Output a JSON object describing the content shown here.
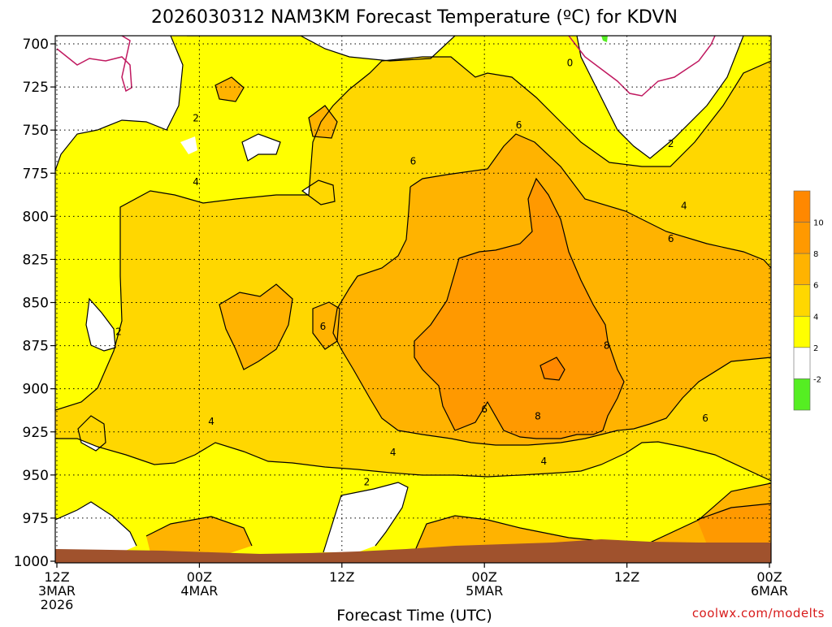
{
  "chart_data": {
    "type": "contour",
    "title": "2026030312 NAM3KM Forecast Temperature (ºC) for KDVN",
    "xlabel": "Forecast Time (UTC)",
    "credit": "coolwx.com/modelts",
    "y_ticks": [
      "700",
      "725",
      "750",
      "775",
      "800",
      "825",
      "850",
      "875",
      "900",
      "925",
      "950",
      "975",
      "1000"
    ],
    "y_values": [
      700,
      725,
      750,
      775,
      800,
      825,
      850,
      875,
      900,
      925,
      950,
      975,
      1000
    ],
    "ylim": [
      700,
      1000
    ],
    "x_ticks": [
      {
        "hour": 0,
        "lines": [
          "12Z",
          "3MAR",
          "2026"
        ]
      },
      {
        "hour": 12,
        "lines": [
          "00Z",
          "4MAR"
        ]
      },
      {
        "hour": 24,
        "lines": [
          "12Z"
        ]
      },
      {
        "hour": 36,
        "lines": [
          "00Z",
          "5MAR"
        ]
      },
      {
        "hour": 48,
        "lines": [
          "12Z"
        ]
      },
      {
        "hour": 60,
        "lines": [
          "00Z",
          "6MAR"
        ]
      }
    ],
    "xlim": [
      0,
      60
    ],
    "grid": true,
    "legend": {
      "placement": "right",
      "levels": [
        "-2",
        "2",
        "4",
        "6",
        "8",
        "10"
      ],
      "colors": [
        "#55ee22",
        "#ffffff",
        "#ffff00",
        "#ffd700",
        "#ffb300",
        "#ff9900",
        "#ff8800"
      ]
    },
    "colors": {
      "white": "#ffffff",
      "yellow": "#ffff00",
      "gold": "#ffd700",
      "orange_light": "#ffb300",
      "orange": "#ff9900",
      "orange_dark": "#ff8800",
      "green": "#55ee22",
      "ground": "#a0522d",
      "zero_line": "#c0185f"
    },
    "contour_labels": [
      {
        "text": "0",
        "hour": 43.2,
        "p": 711
      },
      {
        "text": "2",
        "hour": 11.7,
        "p": 743
      },
      {
        "text": "2",
        "hour": 51.7,
        "p": 758
      },
      {
        "text": "2",
        "hour": 5.2,
        "p": 867
      },
      {
        "text": "2",
        "hour": 26.1,
        "p": 954
      },
      {
        "text": "4",
        "hour": 11.7,
        "p": 780
      },
      {
        "text": "4",
        "hour": 52.8,
        "p": 794
      },
      {
        "text": "4",
        "hour": 13.0,
        "p": 919
      },
      {
        "text": "4",
        "hour": 28.3,
        "p": 937
      },
      {
        "text": "4",
        "hour": 41.0,
        "p": 942
      },
      {
        "text": "6",
        "hour": 38.9,
        "p": 747
      },
      {
        "text": "6",
        "hour": 30.0,
        "p": 768
      },
      {
        "text": "6",
        "hour": 51.7,
        "p": 813
      },
      {
        "text": "6",
        "hour": 22.4,
        "p": 864
      },
      {
        "text": "6",
        "hour": 36.0,
        "p": 912
      },
      {
        "text": "6",
        "hour": 54.6,
        "p": 917
      },
      {
        "text": "8",
        "hour": 46.3,
        "p": 875
      },
      {
        "text": "8",
        "hour": 40.5,
        "p": 916
      }
    ]
  }
}
